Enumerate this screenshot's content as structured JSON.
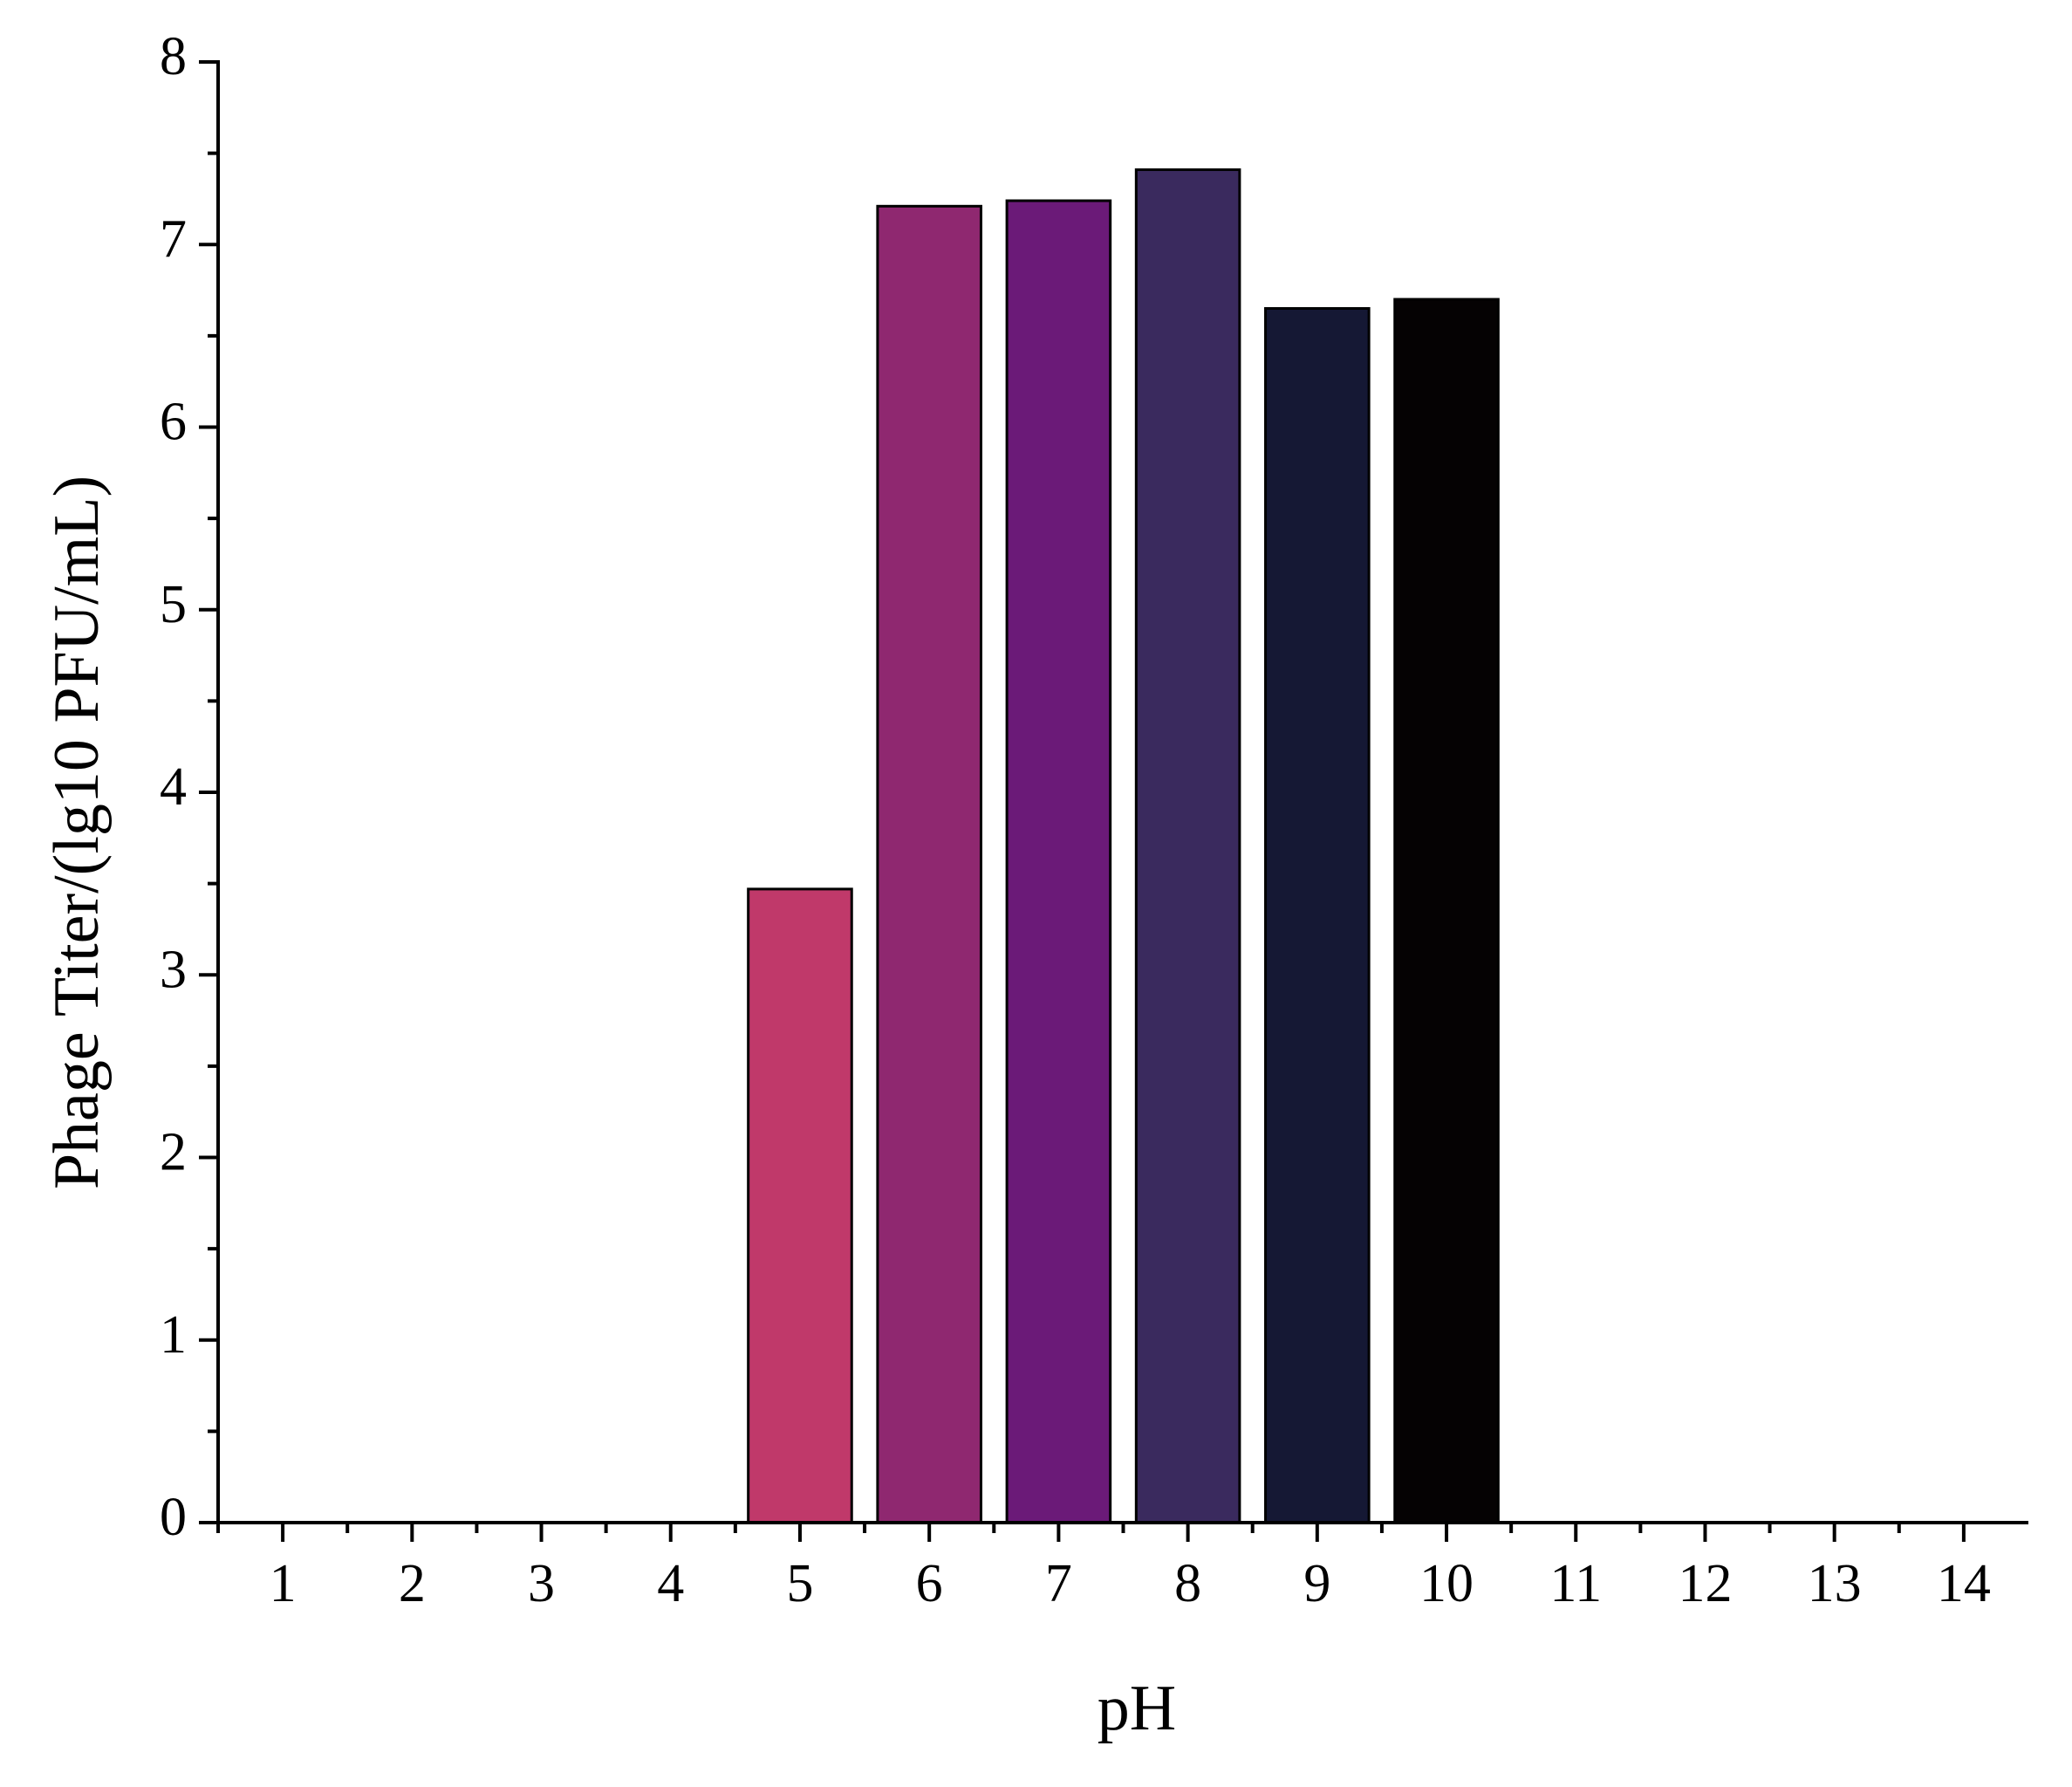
{
  "chart_data": {
    "type": "bar",
    "x_label": "pH",
    "y_label": "Phage Titer/(lg10 PFU/mL)",
    "categories": [
      "1",
      "2",
      "3",
      "4",
      "5",
      "6",
      "7",
      "8",
      "9",
      "10",
      "11",
      "12",
      "13",
      "14"
    ],
    "values": [
      0,
      0,
      0,
      0,
      3.47,
      7.21,
      7.24,
      7.41,
      6.65,
      6.7,
      0,
      0,
      0,
      0
    ],
    "colors": [
      null,
      null,
      null,
      null,
      "#c0396a",
      "#8f2870",
      "#6b1a78",
      "#3a2a5e",
      "#151834",
      "#050203",
      null,
      null,
      null,
      null
    ],
    "ylim": [
      0,
      8
    ],
    "yticks": [
      0,
      1,
      2,
      3,
      4,
      5,
      6,
      7,
      8
    ],
    "grid": false
  }
}
